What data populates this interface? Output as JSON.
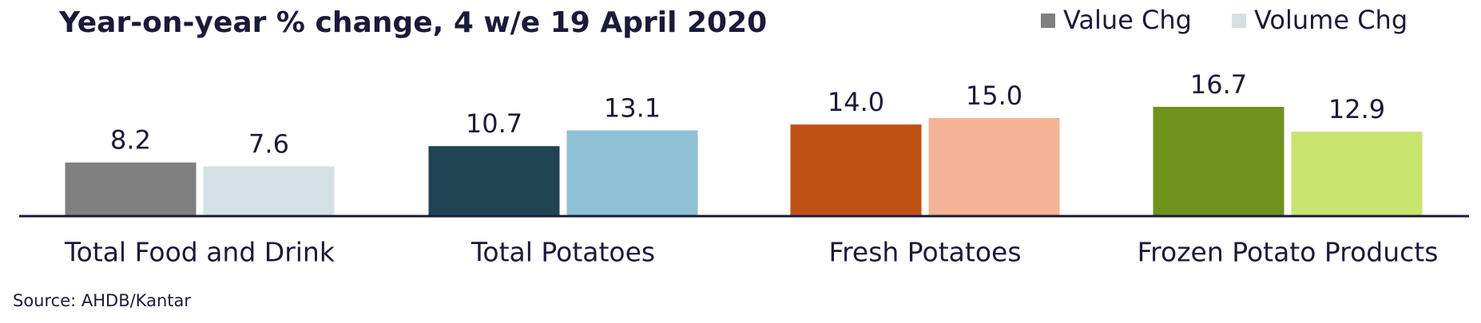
{
  "chart_data": {
    "type": "grouped-bar",
    "title": "Year-on-year % change, 4 w/e 19 April 2020",
    "categories": [
      "Total Food and Drink",
      "Total Potatoes",
      "Fresh Potatoes",
      "Frozen Potato Products"
    ],
    "series": [
      {
        "name": "Value Chg",
        "color": "#808080",
        "colors": [
          "#808080",
          "#1f4555",
          "#c05114",
          "#6e921b"
        ],
        "values": [
          8.2,
          10.7,
          14.0,
          16.7
        ],
        "value_labels": [
          "8.2",
          "10.7",
          "14.0",
          "16.7"
        ]
      },
      {
        "name": "Volume Chg",
        "color": "#d5e0e5",
        "colors": [
          "#d5e0e5",
          "#8fc1d4",
          "#f4b495",
          "#c8e66e"
        ],
        "values": [
          7.6,
          13.1,
          15.0,
          12.9
        ],
        "value_labels": [
          "7.6",
          "13.1",
          "15.0",
          "12.9"
        ]
      }
    ],
    "legend": "top-right",
    "source": "Source: AHDB/Kantar"
  }
}
